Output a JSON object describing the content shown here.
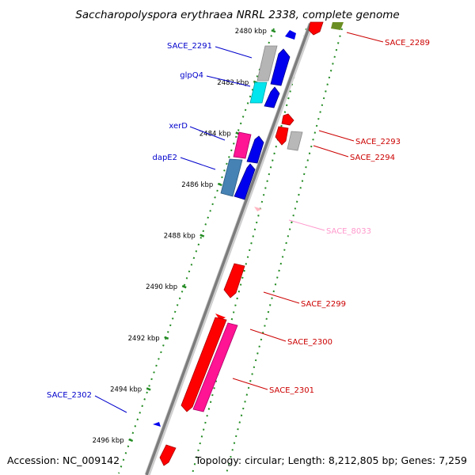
{
  "title": "Saccharopolyspora erythraea NRRL 2338, complete genome",
  "accession": "Accession: NC_009142",
  "topology": "Topology: circular; Length: 8,212,805 bp; Genes: 7,259",
  "ticks": [
    {
      "label": "2480 kbp",
      "kbp": 2480
    },
    {
      "label": "2482 kbp",
      "kbp": 2482
    },
    {
      "label": "2484 kbp",
      "kbp": 2484
    },
    {
      "label": "2486 kbp",
      "kbp": 2486
    },
    {
      "label": "2488 kbp",
      "kbp": 2488
    },
    {
      "label": "2490 kbp",
      "kbp": 2490
    },
    {
      "label": "2492 kbp",
      "kbp": 2492
    },
    {
      "label": "2494 kbp",
      "kbp": 2494
    },
    {
      "label": "2496 kbp",
      "kbp": 2496
    }
  ],
  "gene_labels": [
    {
      "name": "SACE_2291",
      "color": "#0000cc"
    },
    {
      "name": "glpQ4",
      "color": "#0000cc"
    },
    {
      "name": "xerD",
      "color": "#0000cc"
    },
    {
      "name": "dapE2",
      "color": "#0000cc"
    },
    {
      "name": "SACE_2302",
      "color": "#0000cc"
    },
    {
      "name": "SACE_2289",
      "color": "#cc0000"
    },
    {
      "name": "SACE_2293",
      "color": "#cc0000"
    },
    {
      "name": "SACE_2294",
      "color": "#cc0000"
    },
    {
      "name": "SACE_8033",
      "color": "#ff99cc"
    },
    {
      "name": "SACE_2299",
      "color": "#cc0000"
    },
    {
      "name": "SACE_2300",
      "color": "#cc0000"
    },
    {
      "name": "SACE_2301",
      "color": "#cc0000"
    }
  ],
  "colors": {
    "blue_cds": "#0000ee",
    "red_cds": "#ff0000",
    "pink_cds": "#ff1493",
    "gray_cds": "#b8b8b8",
    "cyan_cds": "#00e5ee",
    "steelblue_cds": "#4682b4",
    "olive_cds": "#6b8e23",
    "lightpink_cds": "#ffb6c1",
    "backbone": "#888888",
    "dotted_track": "#228b22"
  }
}
